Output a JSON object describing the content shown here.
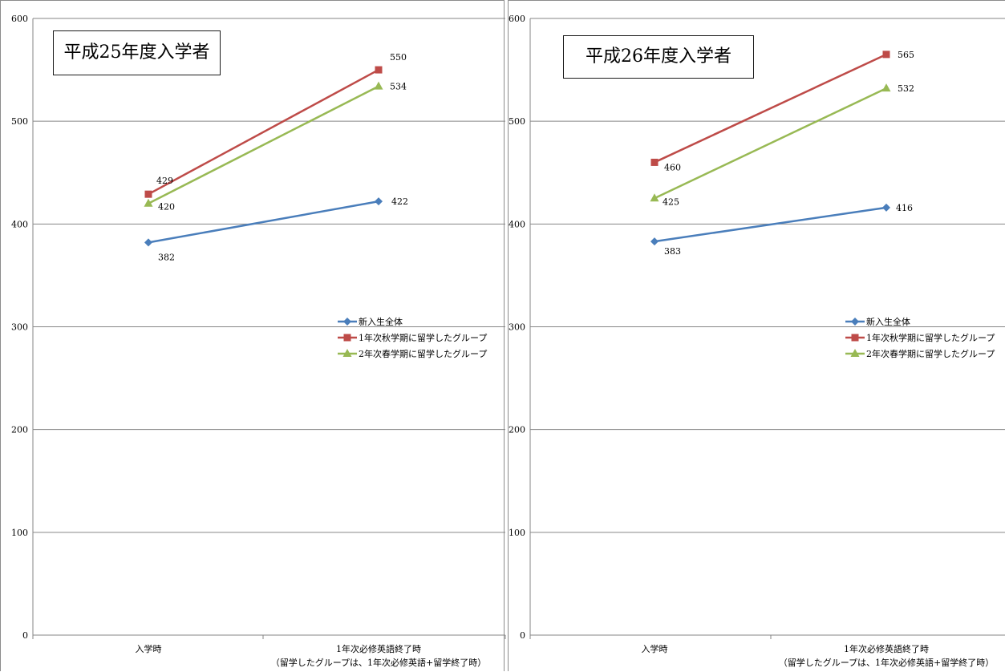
{
  "chart_data": [
    {
      "type": "line",
      "title": "平成25年度入学者",
      "categories": [
        "入学時",
        "1年次必修英語終了時"
      ],
      "category_sublabels": [
        "",
        "（留学したグループは、1年次必修英語+留学終了時）"
      ],
      "ylim": [
        0,
        600
      ],
      "yticks": [
        0,
        100,
        200,
        300,
        400,
        500,
        600
      ],
      "grid": true,
      "legend_position": "right",
      "series": [
        {
          "name": "新入生全体",
          "values": [
            382,
            422
          ],
          "color": "#4a7ebb",
          "marker": "diamond"
        },
        {
          "name": "1年次秋学期に留学したグループ",
          "values": [
            429,
            550
          ],
          "color": "#be4b48",
          "marker": "square"
        },
        {
          "name": "2年次春学期に留学したグループ",
          "values": [
            420,
            534
          ],
          "color": "#98b954",
          "marker": "triangle"
        }
      ]
    },
    {
      "type": "line",
      "title": "平成26年度入学者",
      "categories": [
        "入学時",
        "1年次必修英語終了時"
      ],
      "category_sublabels": [
        "",
        "（留学したグループは、1年次必修英語+留学終了時）"
      ],
      "ylim": [
        0,
        600
      ],
      "yticks": [
        0,
        100,
        200,
        300,
        400,
        500,
        600
      ],
      "grid": true,
      "legend_position": "right",
      "series": [
        {
          "name": "新入生全体",
          "values": [
            383,
            416
          ],
          "color": "#4a7ebb",
          "marker": "diamond"
        },
        {
          "name": "1年次秋学期に留学したグループ",
          "values": [
            460,
            565
          ],
          "color": "#be4b48",
          "marker": "square"
        },
        {
          "name": "2年次春学期に留学したグループ",
          "values": [
            425,
            532
          ],
          "color": "#98b954",
          "marker": "triangle"
        }
      ]
    }
  ]
}
